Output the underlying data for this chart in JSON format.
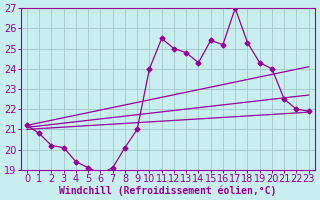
{
  "xlabel": "Windchill (Refroidissement éolien,°C)",
  "bg_color": "#c8eef0",
  "line_color": "#990099",
  "grid_color": "#aacccc",
  "xlim": [
    -0.5,
    23.5
  ],
  "ylim": [
    19,
    27
  ],
  "yticks": [
    19,
    20,
    21,
    22,
    23,
    24,
    25,
    26,
    27
  ],
  "xticks": [
    0,
    1,
    2,
    3,
    4,
    5,
    6,
    7,
    8,
    9,
    10,
    11,
    12,
    13,
    14,
    15,
    16,
    17,
    18,
    19,
    20,
    21,
    22,
    23
  ],
  "main_line_x": [
    0,
    1,
    2,
    3,
    4,
    5,
    6,
    7,
    8,
    9,
    10,
    11,
    12,
    13,
    14,
    15,
    16,
    17,
    18,
    19,
    20,
    21,
    22,
    23
  ],
  "main_line_y": [
    21.2,
    20.8,
    20.2,
    20.1,
    19.4,
    19.1,
    18.8,
    19.1,
    20.1,
    21.0,
    24.0,
    25.5,
    25.0,
    24.8,
    24.3,
    25.4,
    25.2,
    27.0,
    25.3,
    24.3,
    24.0,
    22.5,
    22.0,
    21.9
  ],
  "trend_lines": [
    {
      "x0": 0,
      "y0": 21.2,
      "x1": 23,
      "y1": 24.1
    },
    {
      "x0": 0,
      "y0": 21.1,
      "x1": 23,
      "y1": 22.7
    },
    {
      "x0": 0,
      "y0": 21.0,
      "x1": 23,
      "y1": 21.85
    }
  ],
  "font_size": 7,
  "marker_size": 2.5,
  "line_width": 0.9
}
